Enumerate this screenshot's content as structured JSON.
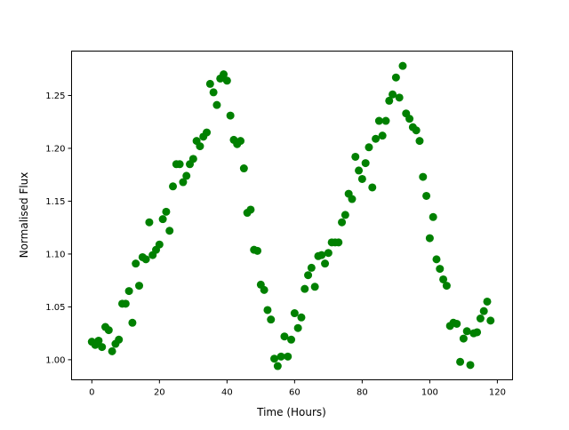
{
  "chart_data": {
    "type": "scatter",
    "title": "",
    "xlabel": "Time (Hours)",
    "ylabel": "Normalised Flux",
    "xlim": [
      -6,
      124.5
    ],
    "ylim": [
      0.981,
      1.292
    ],
    "xticks": [
      0,
      20,
      40,
      60,
      80,
      100,
      120
    ],
    "xtick_labels": [
      "0",
      "20",
      "40",
      "60",
      "80",
      "100",
      "120"
    ],
    "yticks": [
      1.0,
      1.05,
      1.1,
      1.15,
      1.2,
      1.25
    ],
    "ytick_labels": [
      "1.00",
      "1.05",
      "1.10",
      "1.15",
      "1.20",
      "1.25"
    ],
    "grid": false,
    "marker_color": "#008000",
    "x": [
      0,
      1,
      2,
      3,
      4,
      5,
      6,
      7,
      8,
      9,
      10,
      11,
      12,
      13,
      14,
      15,
      16,
      17,
      18,
      19,
      20,
      21,
      22,
      23,
      24,
      25,
      26,
      27,
      28,
      29,
      30,
      31,
      32,
      33,
      34,
      35,
      36,
      37,
      38,
      39,
      40,
      41,
      42,
      43,
      44,
      45,
      46,
      47,
      48,
      49,
      50,
      51,
      52,
      53,
      54,
      55,
      56,
      57,
      58,
      59,
      60,
      61,
      62,
      63,
      64,
      65,
      66,
      67,
      68,
      69,
      70,
      71,
      72,
      73,
      74,
      75,
      76,
      77,
      78,
      79,
      80,
      81,
      82,
      83,
      84,
      85,
      86,
      87,
      88,
      89,
      90,
      91,
      92,
      93,
      94,
      95,
      96,
      97,
      98,
      99,
      100,
      101,
      102,
      103,
      104,
      105,
      106,
      107,
      108,
      109,
      110,
      111,
      112,
      113,
      114,
      115,
      116,
      117,
      118
    ],
    "y": [
      1.017,
      1.014,
      1.018,
      1.012,
      1.031,
      1.028,
      1.008,
      1.015,
      1.019,
      1.053,
      1.053,
      1.065,
      1.035,
      1.091,
      1.07,
      1.097,
      1.095,
      1.13,
      1.099,
      1.104,
      1.109,
      1.133,
      1.14,
      1.122,
      1.164,
      1.185,
      1.185,
      1.168,
      1.174,
      1.185,
      1.19,
      1.207,
      1.202,
      1.211,
      1.215,
      1.261,
      1.253,
      1.241,
      1.266,
      1.27,
      1.264,
      1.231,
      1.208,
      1.204,
      1.207,
      1.181,
      1.139,
      1.142,
      1.104,
      1.103,
      1.071,
      1.066,
      1.047,
      1.038,
      1.001,
      0.994,
      1.003,
      1.022,
      1.003,
      1.019,
      1.044,
      1.03,
      1.04,
      1.067,
      1.08,
      1.087,
      1.069,
      1.098,
      1.099,
      1.091,
      1.101,
      1.111,
      1.111,
      1.111,
      1.13,
      1.137,
      1.157,
      1.152,
      1.192,
      1.179,
      1.171,
      1.186,
      1.201,
      1.163,
      1.209,
      1.226,
      1.212,
      1.226,
      1.245,
      1.251,
      1.267,
      1.248,
      1.278,
      1.233,
      1.228,
      1.22,
      1.217,
      1.207,
      1.173,
      1.155,
      1.115,
      1.135,
      1.095,
      1.086,
      1.076,
      1.07,
      1.032,
      1.035,
      1.034,
      0.998,
      1.02,
      1.027,
      0.995,
      1.025,
      1.026,
      1.039,
      1.046,
      1.055,
      1.037
    ]
  }
}
